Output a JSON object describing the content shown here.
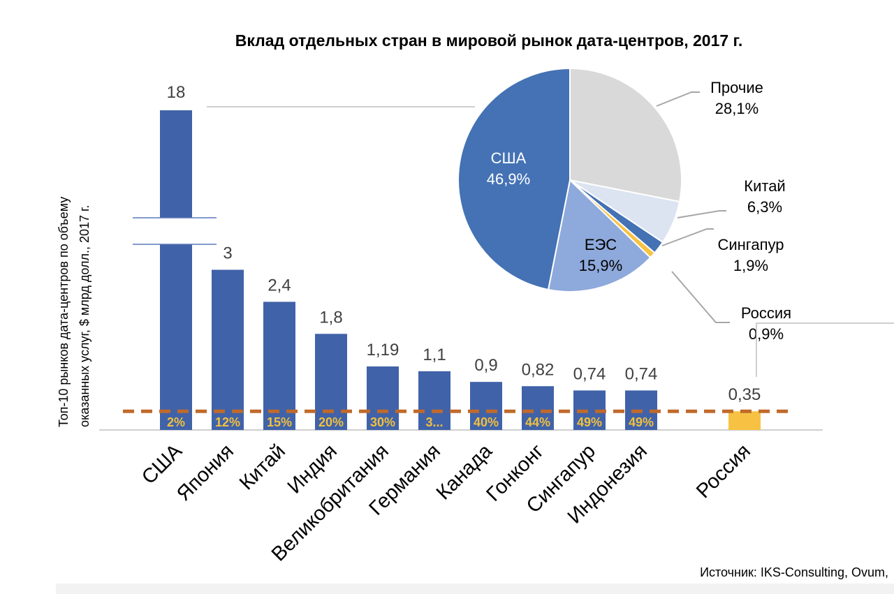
{
  "chart_data": [
    {
      "type": "bar",
      "title": "Вклад отдельных стран в мировой рынок дата-центров, 2017 г.",
      "ylabel_lines": [
        "Топ-10 рынков дата-центров по объему",
        "оказанных услуг,  $ млрд долл., 2017 г."
      ],
      "categories": [
        "США",
        "Япония",
        "Китай",
        "Индия",
        "Великобритания",
        "Германия",
        "Канада",
        "Гонконг",
        "Сингапур",
        "Индонезия",
        "Россия"
      ],
      "values": [
        18,
        3,
        2.4,
        1.8,
        1.19,
        1.1,
        0.9,
        0.82,
        0.74,
        0.74,
        0.35
      ],
      "value_labels": [
        "18",
        "3",
        "2,4",
        "1,8",
        "1,19",
        "1,1",
        "0,9",
        "0,82",
        "0,74",
        "0,74",
        "0,35"
      ],
      "inner_labels": [
        "2%",
        "12%",
        "15%",
        "20%",
        "30%",
        "3...",
        "40%",
        "44%",
        "49%",
        "49%",
        ""
      ],
      "axis_break": true,
      "reference_line": {
        "style": "dashed",
        "y": 0.35
      },
      "bar_color": "#4062a8",
      "highlight_bar_color": "#f7c243",
      "inner_label_color": "#f0c040",
      "reference_line_color": "#c06a2b"
    },
    {
      "type": "pie",
      "labels": [
        "США",
        "Прочие",
        "Китай",
        "Сингапур",
        "Россия",
        "ЕЭС"
      ],
      "values": [
        46.9,
        28.1,
        6.3,
        1.9,
        0.9,
        15.9
      ],
      "value_labels": [
        "46,9%",
        "28,1%",
        "6,3%",
        "1,9%",
        "0,9%",
        "15,9%"
      ],
      "colors": [
        "#4472b4",
        "#d9d9d9",
        "#dce4f2",
        "#4472b4",
        "#f7c243",
        "#8ea9db"
      ]
    }
  ],
  "source": "Источник: IKS-Consulting, Ovum,"
}
